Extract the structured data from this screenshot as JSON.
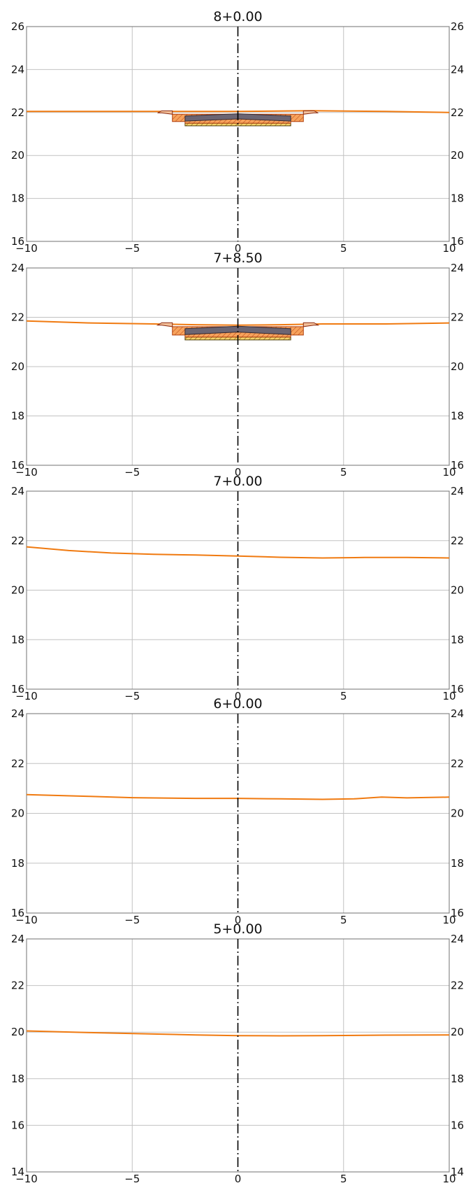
{
  "chart_data": [
    {
      "type": "line",
      "title": "8+0.00",
      "xlim": [
        -10,
        10
      ],
      "ylim": [
        16,
        26
      ],
      "xticks": [
        -10,
        -5,
        0,
        5,
        10
      ],
      "yticks": [
        16,
        18,
        20,
        22,
        24,
        26
      ],
      "ground_x": [
        -10,
        -5,
        0,
        3.5,
        7,
        10
      ],
      "ground_y": [
        22.05,
        22.05,
        22.05,
        22.08,
        22.05,
        22.0
      ],
      "has_section": true,
      "section_top": 22.0
    },
    {
      "type": "line",
      "title": "7+8.50",
      "xlim": [
        -10,
        10
      ],
      "ylim": [
        16,
        24
      ],
      "xticks": [
        -10,
        -5,
        0,
        5,
        10
      ],
      "yticks": [
        16,
        18,
        20,
        22,
        24
      ],
      "ground_x": [
        -10,
        -7,
        -4,
        -2,
        0,
        2,
        4,
        7,
        10
      ],
      "ground_y": [
        21.85,
        21.77,
        21.73,
        21.7,
        21.68,
        21.7,
        21.73,
        21.73,
        21.77
      ],
      "has_section": true,
      "section_top": 21.7
    },
    {
      "type": "line",
      "title": "7+0.00",
      "xlim": [
        -10,
        10
      ],
      "ylim": [
        16,
        24
      ],
      "xticks": [
        -10,
        -5,
        0,
        5,
        10
      ],
      "yticks": [
        16,
        18,
        20,
        22,
        24
      ],
      "ground_x": [
        -10,
        -8,
        -6,
        -4,
        -2,
        0,
        2,
        4,
        6,
        8,
        10
      ],
      "ground_y": [
        21.75,
        21.6,
        21.5,
        21.45,
        21.42,
        21.38,
        21.33,
        21.3,
        21.32,
        21.32,
        21.3
      ],
      "has_section": false
    },
    {
      "type": "line",
      "title": "6+0.00",
      "xlim": [
        -10,
        10
      ],
      "ylim": [
        16,
        24
      ],
      "xticks": [
        -10,
        -5,
        0,
        5,
        10
      ],
      "yticks": [
        16,
        18,
        20,
        22,
        24
      ],
      "ground_x": [
        -10,
        -7,
        -5,
        -2,
        0,
        2,
        4,
        5.5,
        6.8,
        8,
        10
      ],
      "ground_y": [
        20.75,
        20.68,
        20.63,
        20.6,
        20.6,
        20.58,
        20.56,
        20.58,
        20.65,
        20.62,
        20.65
      ],
      "has_section": false
    },
    {
      "type": "line",
      "title": "5+0.00",
      "xlim": [
        -10,
        10
      ],
      "ylim": [
        14,
        24
      ],
      "xticks": [
        -10,
        -5,
        0,
        5,
        10
      ],
      "yticks": [
        14,
        16,
        18,
        20,
        22,
        24
      ],
      "ground_x": [
        -10,
        -7,
        -4,
        -2,
        0,
        2,
        4,
        7,
        10
      ],
      "ground_y": [
        20.05,
        19.98,
        19.92,
        19.88,
        19.85,
        19.84,
        19.85,
        19.87,
        19.88
      ],
      "has_section": false
    }
  ]
}
